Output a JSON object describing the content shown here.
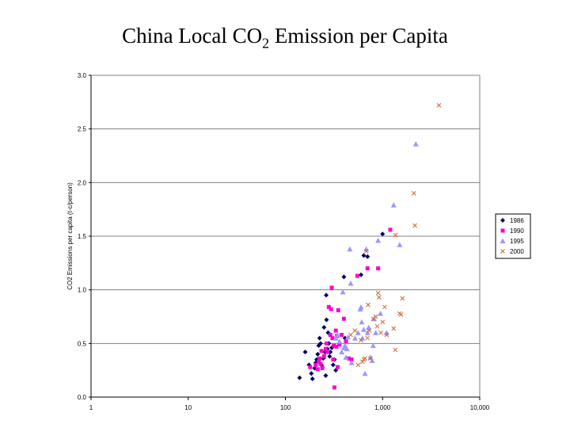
{
  "slide": {
    "title_main": "China Local CO",
    "title_sub": "2",
    "title_rest": " Emission per Capita"
  },
  "chart_data": {
    "type": "scatter",
    "ylabel": "CO2 Emissions per capita (t-c/person)",
    "xlabel": "",
    "x_scale": "log",
    "xlim": [
      1,
      10000
    ],
    "ylim": [
      0,
      3.0
    ],
    "grid": "horizontal",
    "legend_position": "right",
    "x_ticks": [
      {
        "value": 1,
        "label": "1"
      },
      {
        "value": 10,
        "label": "10"
      },
      {
        "value": 100,
        "label": "100"
      },
      {
        "value": 1000,
        "label": "1,000"
      },
      {
        "value": 10000,
        "label": "10,000"
      }
    ],
    "y_ticks": [
      {
        "value": 0,
        "label": "0.0"
      },
      {
        "value": 0.5,
        "label": "0.5"
      },
      {
        "value": 1.0,
        "label": "1.0"
      },
      {
        "value": 1.5,
        "label": "1.5"
      },
      {
        "value": 2.0,
        "label": "2.0"
      },
      {
        "value": 2.5,
        "label": "2.5"
      },
      {
        "value": 3.0,
        "label": "3.0"
      }
    ],
    "series": [
      {
        "name": "1986",
        "marker": "diamond",
        "color": "#000066",
        "points": [
          [
            140,
            0.18
          ],
          [
            160,
            0.42
          ],
          [
            175,
            0.3
          ],
          [
            185,
            0.22
          ],
          [
            190,
            0.17
          ],
          [
            200,
            0.27
          ],
          [
            205,
            0.32
          ],
          [
            210,
            0.35
          ],
          [
            215,
            0.4
          ],
          [
            220,
            0.48
          ],
          [
            225,
            0.55
          ],
          [
            230,
            0.5
          ],
          [
            235,
            0.3
          ],
          [
            240,
            0.28
          ],
          [
            245,
            0.36
          ],
          [
            250,
            0.65
          ],
          [
            255,
            0.42
          ],
          [
            260,
            0.2
          ],
          [
            263,
            0.95
          ],
          [
            265,
            0.72
          ],
          [
            270,
            0.45
          ],
          [
            275,
            0.6
          ],
          [
            280,
            0.5
          ],
          [
            285,
            0.38
          ],
          [
            290,
            0.42
          ],
          [
            300,
            0.46
          ],
          [
            310,
            0.3
          ],
          [
            320,
            0.35
          ],
          [
            330,
            0.25
          ],
          [
            400,
            1.12
          ],
          [
            410,
            0.55
          ],
          [
            600,
            1.14
          ],
          [
            640,
            1.32
          ],
          [
            700,
            1.31
          ],
          [
            1000,
            1.52
          ]
        ]
      },
      {
        "name": "1990",
        "marker": "square",
        "color": "#ff00cc",
        "points": [
          [
            180,
            0.28
          ],
          [
            205,
            0.3
          ],
          [
            215,
            0.26
          ],
          [
            220,
            0.33
          ],
          [
            225,
            0.36
          ],
          [
            230,
            0.31
          ],
          [
            235,
            0.43
          ],
          [
            240,
            0.27
          ],
          [
            250,
            0.38
          ],
          [
            260,
            0.45
          ],
          [
            265,
            0.5
          ],
          [
            270,
            0.42
          ],
          [
            280,
            0.84
          ],
          [
            290,
            0.58
          ],
          [
            295,
            0.82
          ],
          [
            300,
            1.02
          ],
          [
            305,
            0.55
          ],
          [
            310,
            0.35
          ],
          [
            315,
            0.48
          ],
          [
            320,
            0.09
          ],
          [
            330,
            0.62
          ],
          [
            335,
            0.47
          ],
          [
            340,
            0.57
          ],
          [
            345,
            0.28
          ],
          [
            350,
            0.81
          ],
          [
            360,
            0.49
          ],
          [
            380,
            0.58
          ],
          [
            400,
            0.73
          ],
          [
            420,
            0.52
          ],
          [
            450,
            0.36
          ],
          [
            480,
            0.35
          ],
          [
            550,
            1.13
          ],
          [
            700,
            1.2
          ],
          [
            900,
            1.2
          ],
          [
            1200,
            1.56
          ]
        ]
      },
      {
        "name": "1995",
        "marker": "triangle",
        "color": "#9999ff",
        "points": [
          [
            330,
            0.55
          ],
          [
            345,
            0.58
          ],
          [
            360,
            0.52
          ],
          [
            380,
            0.42
          ],
          [
            390,
            0.98
          ],
          [
            400,
            0.46
          ],
          [
            410,
            0.48
          ],
          [
            420,
            0.37
          ],
          [
            430,
            0.45
          ],
          [
            440,
            0.56
          ],
          [
            460,
            1.38
          ],
          [
            470,
            1.06
          ],
          [
            480,
            0.32
          ],
          [
            520,
            0.55
          ],
          [
            560,
            0.6
          ],
          [
            590,
            0.82
          ],
          [
            600,
            0.84
          ],
          [
            610,
            0.7
          ],
          [
            620,
            0.55
          ],
          [
            640,
            0.63
          ],
          [
            660,
            0.22
          ],
          [
            680,
            1.38
          ],
          [
            700,
            0.6
          ],
          [
            720,
            0.65
          ],
          [
            750,
            0.37
          ],
          [
            780,
            0.34
          ],
          [
            800,
            0.48
          ],
          [
            820,
            0.73
          ],
          [
            850,
            0.6
          ],
          [
            900,
            1.46
          ],
          [
            950,
            0.78
          ],
          [
            1100,
            0.6
          ],
          [
            1300,
            1.79
          ],
          [
            1500,
            1.42
          ],
          [
            2200,
            2.36
          ]
        ]
      },
      {
        "name": "2000",
        "marker": "x",
        "color": "#cc6633",
        "points": [
          [
            470,
            0.58
          ],
          [
            520,
            0.62
          ],
          [
            560,
            0.3
          ],
          [
            600,
            0.53
          ],
          [
            620,
            0.33
          ],
          [
            640,
            0.35
          ],
          [
            660,
            0.36
          ],
          [
            680,
            1.36
          ],
          [
            700,
            0.55
          ],
          [
            710,
            0.86
          ],
          [
            730,
            0.62
          ],
          [
            750,
            0.36
          ],
          [
            800,
            0.73
          ],
          [
            850,
            0.75
          ],
          [
            880,
            0.66
          ],
          [
            900,
            0.97
          ],
          [
            920,
            0.93
          ],
          [
            960,
            0.6
          ],
          [
            1000,
            0.7
          ],
          [
            1050,
            0.84
          ],
          [
            1100,
            0.58
          ],
          [
            1300,
            0.64
          ],
          [
            1350,
            0.44
          ],
          [
            1360,
            1.51
          ],
          [
            1500,
            0.78
          ],
          [
            1550,
            0.77
          ],
          [
            1600,
            0.92
          ],
          [
            2100,
            1.9
          ],
          [
            2150,
            1.6
          ],
          [
            3800,
            2.72
          ]
        ]
      }
    ]
  }
}
